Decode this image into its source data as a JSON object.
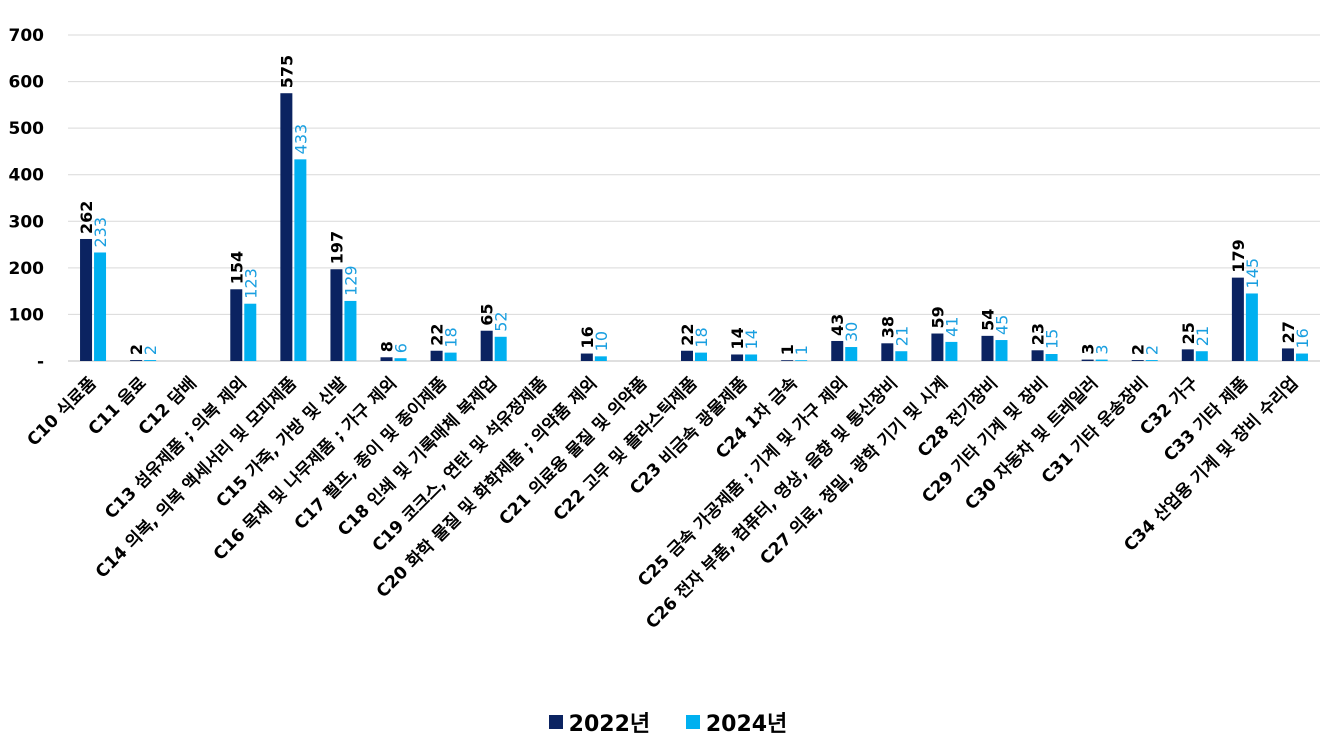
{
  "chart_data": {
    "type": "bar",
    "categories": [
      "C10 식료품",
      "C11 음료",
      "C12 담배",
      "C13 섬유제품 ; 의복 제외",
      "C14 의복, 의복 액세서리 및 모피제품",
      "C15 가죽, 가방 및 신발",
      "C16 목재 및 나무제품 ; 가구 제외",
      "C17 펄프, 종이 및 종이제품",
      "C18 인쇄 및 기록매체 복제업",
      "C19 코크스, 연탄 및 석유정제품",
      "C20 화학 물질 및 화학제품 ; 의약품 제외",
      "C21 의료용 물질 및 의약품",
      "C22 고무 및 플라스틱제품",
      "C23 비금속 광물제품",
      "C24 1차 금속",
      "C25 금속 가공제품 ; 기계 및 가구 제외",
      "C26 전자 부품, 컴퓨터, 영상, 음향 및 통신장비",
      "C27 의료, 정밀, 광학 기기 및 시계",
      "C28 전기장비",
      "C29 기타 기계 및 장비",
      "C30 자동차 및 트레일러",
      "C31 기타 운송장비",
      "C32 가구",
      "C33 기타 제품",
      "C34 산업용 기계 및 장비 수리업"
    ],
    "series": [
      {
        "name": "2022년",
        "color": "#0b2361",
        "values": [
          262,
          2,
          null,
          154,
          575,
          197,
          8,
          22,
          65,
          null,
          16,
          null,
          22,
          14,
          1,
          43,
          38,
          59,
          54,
          23,
          3,
          2,
          25,
          179,
          27
        ],
        "labels": [
          "262",
          "2",
          "",
          "154",
          "575",
          "197",
          "8",
          "22",
          "65",
          "",
          "16",
          "",
          "22",
          "14",
          "1",
          "43",
          "38",
          "59",
          "54",
          "23",
          "3",
          "2",
          "25",
          "179",
          "27"
        ]
      },
      {
        "name": "2024년",
        "color": "#00b0f0",
        "values": [
          233,
          2,
          null,
          123,
          433,
          129,
          6,
          18,
          52,
          null,
          10,
          null,
          18,
          14,
          1,
          30,
          21,
          41,
          45,
          15,
          3,
          2,
          21,
          145,
          16
        ],
        "labels": [
          "233",
          "2",
          "",
          "123",
          "433",
          "129",
          "6",
          "18",
          "52",
          "",
          "10",
          "",
          "18",
          "14",
          "1",
          "30",
          "21",
          "41",
          "45",
          "15",
          "3",
          "2",
          "21",
          "145",
          "16"
        ]
      }
    ],
    "yticks": [
      0,
      100,
      200,
      300,
      400,
      500,
      600,
      700
    ],
    "ytick_labels": [
      "-",
      "100",
      "200",
      "300",
      "400",
      "500",
      "600",
      "700"
    ],
    "ylim": [
      0,
      700
    ],
    "title": "",
    "xlabel": "",
    "ylabel": "",
    "grid": true,
    "legend_position": "bottom-center"
  }
}
